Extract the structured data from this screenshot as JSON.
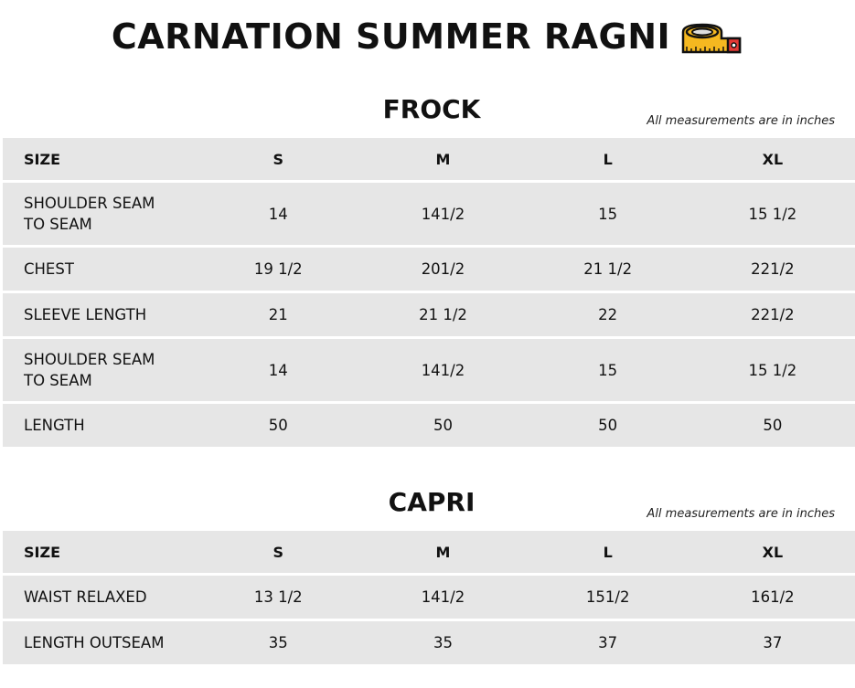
{
  "title": "CARNATION SUMMER RAGNI",
  "title_icon": "tape-measure-icon",
  "sections": [
    {
      "name": "FROCK",
      "note": "All measurements are in inches",
      "header": [
        "SIZE",
        "S",
        "M",
        "L",
        "XL"
      ],
      "rows": [
        [
          "SHOULDER SEAM\nTO SEAM",
          "14",
          "141/2",
          "15",
          "15 1/2"
        ],
        [
          "CHEST",
          "19 1/2",
          "201/2",
          "21 1/2",
          "221/2"
        ],
        [
          "SLEEVE LENGTH",
          "21",
          "21 1/2",
          "22",
          "221/2"
        ],
        [
          "SHOULDER SEAM\nTO SEAM",
          "14",
          "141/2",
          "15",
          "15 1/2"
        ],
        [
          "LENGTH",
          "50",
          "50",
          "50",
          "50"
        ]
      ]
    },
    {
      "name": "CAPRI",
      "note": "All measurements are in inches",
      "header": [
        "SIZE",
        "S",
        "M",
        "L",
        "XL"
      ],
      "rows": [
        [
          "WAIST RELAXED",
          "13 1/2",
          "141/2",
          "151/2",
          "161/2"
        ],
        [
          "LENGTH OUTSEAM",
          "35",
          "35",
          "37",
          "37"
        ]
      ]
    }
  ],
  "colors": {
    "row_bg": "#e6e6e6",
    "tape_yellow": "#f5c518",
    "tape_red": "#e53935"
  }
}
